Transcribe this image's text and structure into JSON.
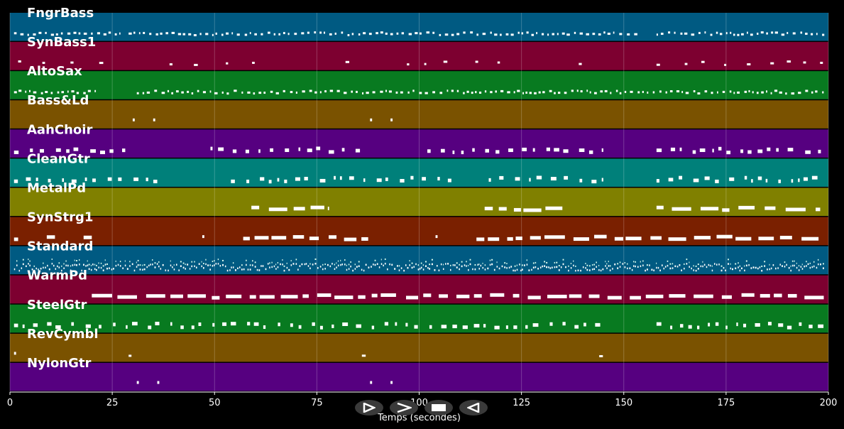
{
  "chart_data": {
    "type": "piano-roll",
    "xlabel": "Temps (secondes)",
    "xlim": [
      0,
      200
    ],
    "x_ticks": [
      0,
      25,
      50,
      75,
      100,
      125,
      150,
      175,
      200
    ],
    "grid": true,
    "tracks": [
      {
        "name": "FngrBass",
        "color": "#005a82",
        "density": "dense",
        "note_ranges": [
          [
            1,
            27
          ],
          [
            29,
            154
          ],
          [
            158,
            199
          ]
        ]
      },
      {
        "name": "SynBass1",
        "color": "#7d0030",
        "density": "sparse",
        "note_ranges": [
          [
            2,
            26
          ],
          [
            39,
            60
          ],
          [
            82,
            84
          ],
          [
            97,
            120
          ],
          [
            139,
            143
          ],
          [
            158,
            199
          ]
        ]
      },
      {
        "name": "AltoSax",
        "color": "#087a20",
        "density": "dense",
        "note_ranges": [
          [
            1,
            21
          ],
          [
            31,
            199
          ]
        ]
      },
      {
        "name": "Bass&Ld",
        "color": "#7a5200",
        "density": "sparse",
        "note_ranges": [
          [
            30,
            30.5
          ],
          [
            35,
            35.5
          ],
          [
            88,
            88.5
          ],
          [
            93,
            93.5
          ]
        ]
      },
      {
        "name": "AahChoir",
        "color": "#560080",
        "density": "medium",
        "note_ranges": [
          [
            1,
            29
          ],
          [
            49,
            87
          ],
          [
            102,
            145
          ],
          [
            158,
            199
          ]
        ]
      },
      {
        "name": "CleanGtr",
        "color": "#00807a",
        "density": "medium",
        "note_ranges": [
          [
            1,
            36
          ],
          [
            54,
            108
          ],
          [
            117,
            145
          ],
          [
            158,
            199
          ]
        ]
      },
      {
        "name": "MetalPd",
        "color": "#808000",
        "density": "legato",
        "note_ranges": [
          [
            59,
            78
          ],
          [
            116,
            135
          ],
          [
            158,
            198
          ]
        ]
      },
      {
        "name": "SynStrg1",
        "color": "#7a2000",
        "density": "legato",
        "note_ranges": [
          [
            1,
            2
          ],
          [
            9,
            11
          ],
          [
            18,
            20
          ],
          [
            47,
            47.5
          ],
          [
            57,
            88
          ],
          [
            104,
            104.5
          ],
          [
            114,
            199
          ]
        ]
      },
      {
        "name": "Standard",
        "color": "#005a82",
        "density": "very-dense",
        "note_ranges": [
          [
            1,
            199
          ]
        ]
      },
      {
        "name": "WarmPd",
        "color": "#7d0030",
        "density": "legato",
        "note_ranges": [
          [
            20,
            199
          ]
        ]
      },
      {
        "name": "SteelGtr",
        "color": "#087a20",
        "density": "medium",
        "note_ranges": [
          [
            1,
            145
          ],
          [
            158,
            199
          ]
        ]
      },
      {
        "name": "RevCymbl",
        "color": "#7a5200",
        "density": "sparse",
        "note_ranges": [
          [
            1,
            1.5
          ],
          [
            29,
            30
          ],
          [
            86,
            87
          ],
          [
            144,
            145
          ]
        ]
      },
      {
        "name": "NylonGtr",
        "color": "#560080",
        "density": "sparse",
        "note_ranges": [
          [
            31,
            31.5
          ],
          [
            36,
            36.5
          ],
          [
            88,
            88.5
          ],
          [
            93,
            93.5
          ]
        ]
      }
    ]
  },
  "controls": {
    "play_label": "▷",
    "forward_label": ">",
    "stop_label": "■",
    "rewind_label": "◁"
  }
}
